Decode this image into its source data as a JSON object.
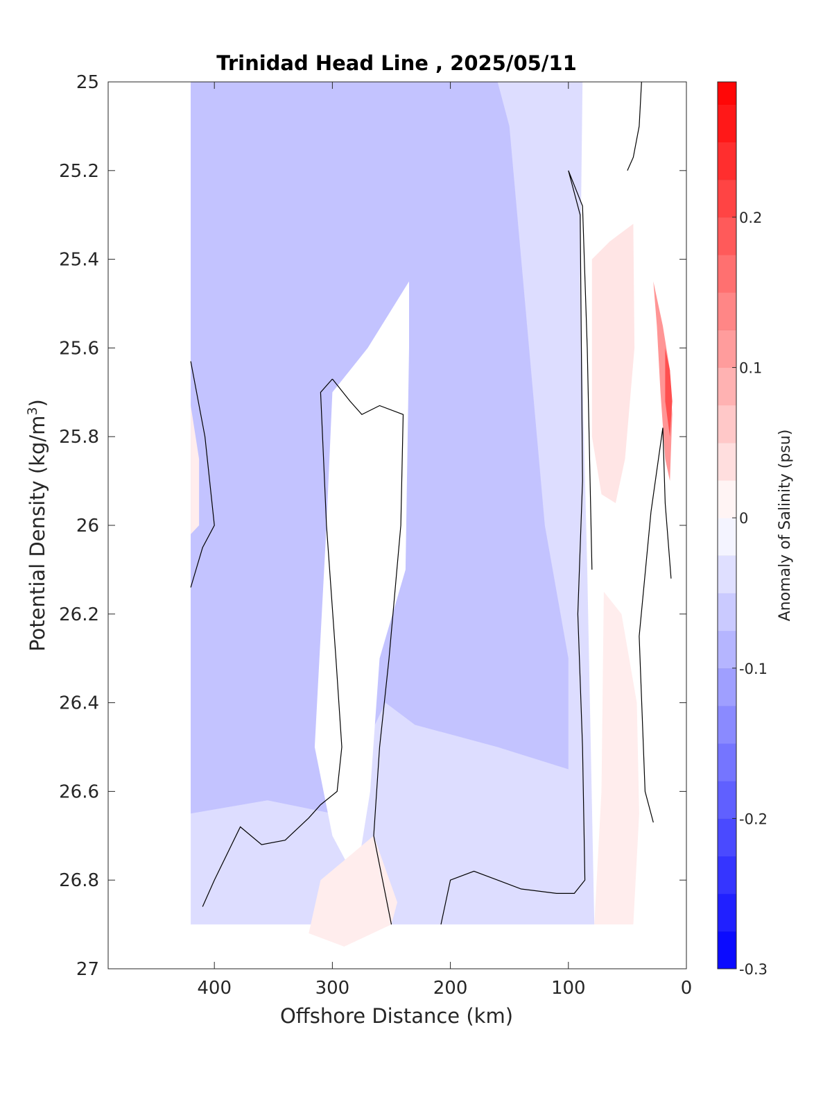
{
  "chart_data": {
    "type": "heatmap",
    "subtype": "filled-contour",
    "title": "Trinidad Head Line , 2025/05/11",
    "xlabel": "Offshore Distance (km)",
    "ylabel_main": "Potential Density (kg/m",
    "ylabel_sup": "3",
    "ylabel_close": ")",
    "colorbar_label": "Anomaly of Salinity (psu)",
    "x_axis": {
      "range": [
        490,
        0
      ],
      "reversed": true,
      "ticks": [
        400,
        300,
        200,
        100,
        0
      ],
      "tick_labels": [
        "400",
        "300",
        "200",
        "100",
        "0"
      ]
    },
    "y_axis": {
      "range": [
        25,
        27
      ],
      "reversed": true,
      "ticks": [
        25,
        25.2,
        25.4,
        25.6,
        25.8,
        26,
        26.2,
        26.4,
        26.6,
        26.8,
        27
      ],
      "tick_labels": [
        "25",
        "25.2",
        "25.4",
        "25.6",
        "25.8",
        "26",
        "26.2",
        "26.4",
        "26.6",
        "26.8",
        "27"
      ]
    },
    "colorbar": {
      "range": [
        -0.3,
        0.29
      ],
      "step": 0.025,
      "ticks": [
        -0.3,
        -0.2,
        -0.1,
        0,
        0.1,
        0.2
      ],
      "tick_labels": [
        "-0.3",
        "-0.2",
        "-0.1",
        "0",
        "0.1",
        "0.2"
      ],
      "colormap": "blue-white-red",
      "low_color": "#0000ff",
      "mid_color": "#ffffff",
      "high_color": "#ff0000"
    },
    "data_extent": {
      "x": [
        420,
        10
      ],
      "y": [
        25,
        26.9
      ]
    },
    "grid": false,
    "zero_contour": "black",
    "regions": [
      {
        "name": "broad-negative-field",
        "value": -0.04,
        "points": [
          [
            420,
            25
          ],
          [
            88,
            25
          ],
          [
            90,
            25.45
          ],
          [
            84,
            26.1
          ],
          [
            78,
            26.9
          ],
          [
            420,
            26.9
          ]
        ]
      },
      {
        "name": "offshore-negative-core",
        "value": -0.07,
        "points": [
          [
            420,
            25
          ],
          [
            160,
            25
          ],
          [
            150,
            25.1
          ],
          [
            120,
            26
          ],
          [
            100,
            26.3
          ],
          [
            100,
            26.55
          ],
          [
            160,
            26.5
          ],
          [
            230,
            26.45
          ],
          [
            255,
            26.4
          ],
          [
            300,
            26.65
          ],
          [
            355,
            26.62
          ],
          [
            420,
            26.65
          ]
        ]
      },
      {
        "name": "nearshore-positive-patch",
        "value": 0.03,
        "points": [
          [
            80,
            25.4
          ],
          [
            65,
            25.36
          ],
          [
            45,
            25.32
          ],
          [
            44,
            25.6
          ],
          [
            52,
            25.85
          ],
          [
            60,
            25.95
          ],
          [
            72,
            25.93
          ],
          [
            80,
            25.8
          ]
        ]
      },
      {
        "name": "inner-shelf-positive-band",
        "value": 0.02,
        "points": [
          [
            70,
            26.15
          ],
          [
            55,
            26.2
          ],
          [
            42,
            26.4
          ],
          [
            40,
            26.65
          ],
          [
            45,
            26.9
          ],
          [
            78,
            26.9
          ],
          [
            72,
            26.6
          ]
        ]
      },
      {
        "name": "mid-shelf-white-column",
        "value": 0.0,
        "points": [
          [
            300,
            25.7
          ],
          [
            270,
            25.6
          ],
          [
            235,
            25.45
          ],
          [
            235,
            25.6
          ],
          [
            238,
            26.1
          ],
          [
            260,
            26.3
          ],
          [
            268,
            26.6
          ],
          [
            280,
            26.8
          ],
          [
            300,
            26.7
          ],
          [
            315,
            26.5
          ],
          [
            305,
            26.0
          ]
        ]
      },
      {
        "name": "coastal-high-anomaly",
        "value": 0.12,
        "points": [
          [
            28,
            25.45
          ],
          [
            20,
            25.55
          ],
          [
            14,
            25.65
          ],
          [
            12,
            25.75
          ],
          [
            14,
            25.9
          ],
          [
            18,
            25.85
          ],
          [
            22,
            25.7
          ],
          [
            25,
            25.55
          ]
        ]
      },
      {
        "name": "coastal-peak-anomaly",
        "value": 0.2,
        "points": [
          [
            18,
            25.6
          ],
          [
            14,
            25.65
          ],
          [
            12,
            25.72
          ],
          [
            14,
            25.8
          ],
          [
            18,
            25.72
          ]
        ]
      },
      {
        "name": "offshore-positive-sliver",
        "value": 0.02,
        "points": [
          [
            420,
            25.73
          ],
          [
            413,
            25.85
          ],
          [
            413,
            26.0
          ],
          [
            420,
            26.02
          ]
        ]
      },
      {
        "name": "deep-positive-lens",
        "value": 0.02,
        "points": [
          [
            265,
            26.7
          ],
          [
            310,
            26.8
          ],
          [
            320,
            26.92
          ],
          [
            290,
            26.95
          ],
          [
            250,
            26.9
          ],
          [
            245,
            26.85
          ]
        ]
      }
    ],
    "zero_contour_lines": [
      [
        [
          420,
          25.63
        ],
        [
          408,
          25.8
        ],
        [
          400,
          26.0
        ],
        [
          410,
          26.05
        ],
        [
          420,
          26.14
        ]
      ],
      [
        [
          300,
          25.67
        ],
        [
          285,
          25.72
        ],
        [
          275,
          25.75
        ],
        [
          260,
          25.73
        ],
        [
          240,
          25.75
        ],
        [
          242,
          26.0
        ],
        [
          252,
          26.3
        ],
        [
          260,
          26.5
        ],
        [
          265,
          26.7
        ],
        [
          250,
          26.9
        ]
      ],
      [
        [
          300,
          25.67
        ],
        [
          310,
          25.7
        ],
        [
          305,
          26.0
        ],
        [
          297,
          26.3
        ],
        [
          292,
          26.5
        ],
        [
          296,
          26.6
        ],
        [
          310,
          26.63
        ],
        [
          320,
          26.66
        ],
        [
          340,
          26.71
        ],
        [
          360,
          26.72
        ],
        [
          378,
          26.68
        ],
        [
          400,
          26.8
        ],
        [
          410,
          26.86
        ]
      ],
      [
        [
          208,
          26.9
        ],
        [
          200,
          26.8
        ],
        [
          180,
          26.78
        ],
        [
          160,
          26.8
        ],
        [
          140,
          26.82
        ],
        [
          110,
          26.83
        ],
        [
          95,
          26.83
        ],
        [
          86,
          26.8
        ],
        [
          88,
          26.5
        ],
        [
          92,
          26.2
        ],
        [
          88,
          25.9
        ],
        [
          90,
          25.3
        ],
        [
          100,
          25.2
        ],
        [
          88,
          25.28
        ],
        [
          84,
          25.6
        ],
        [
          80,
          26.1
        ]
      ],
      [
        [
          50,
          25.2
        ],
        [
          45,
          25.17
        ],
        [
          40,
          25.1
        ],
        [
          38,
          25.0
        ]
      ],
      [
        [
          28,
          26.67
        ],
        [
          35,
          26.6
        ],
        [
          40,
          26.25
        ],
        [
          30,
          25.97
        ],
        [
          20,
          25.78
        ],
        [
          18,
          25.95
        ],
        [
          13,
          26.12
        ]
      ]
    ]
  }
}
